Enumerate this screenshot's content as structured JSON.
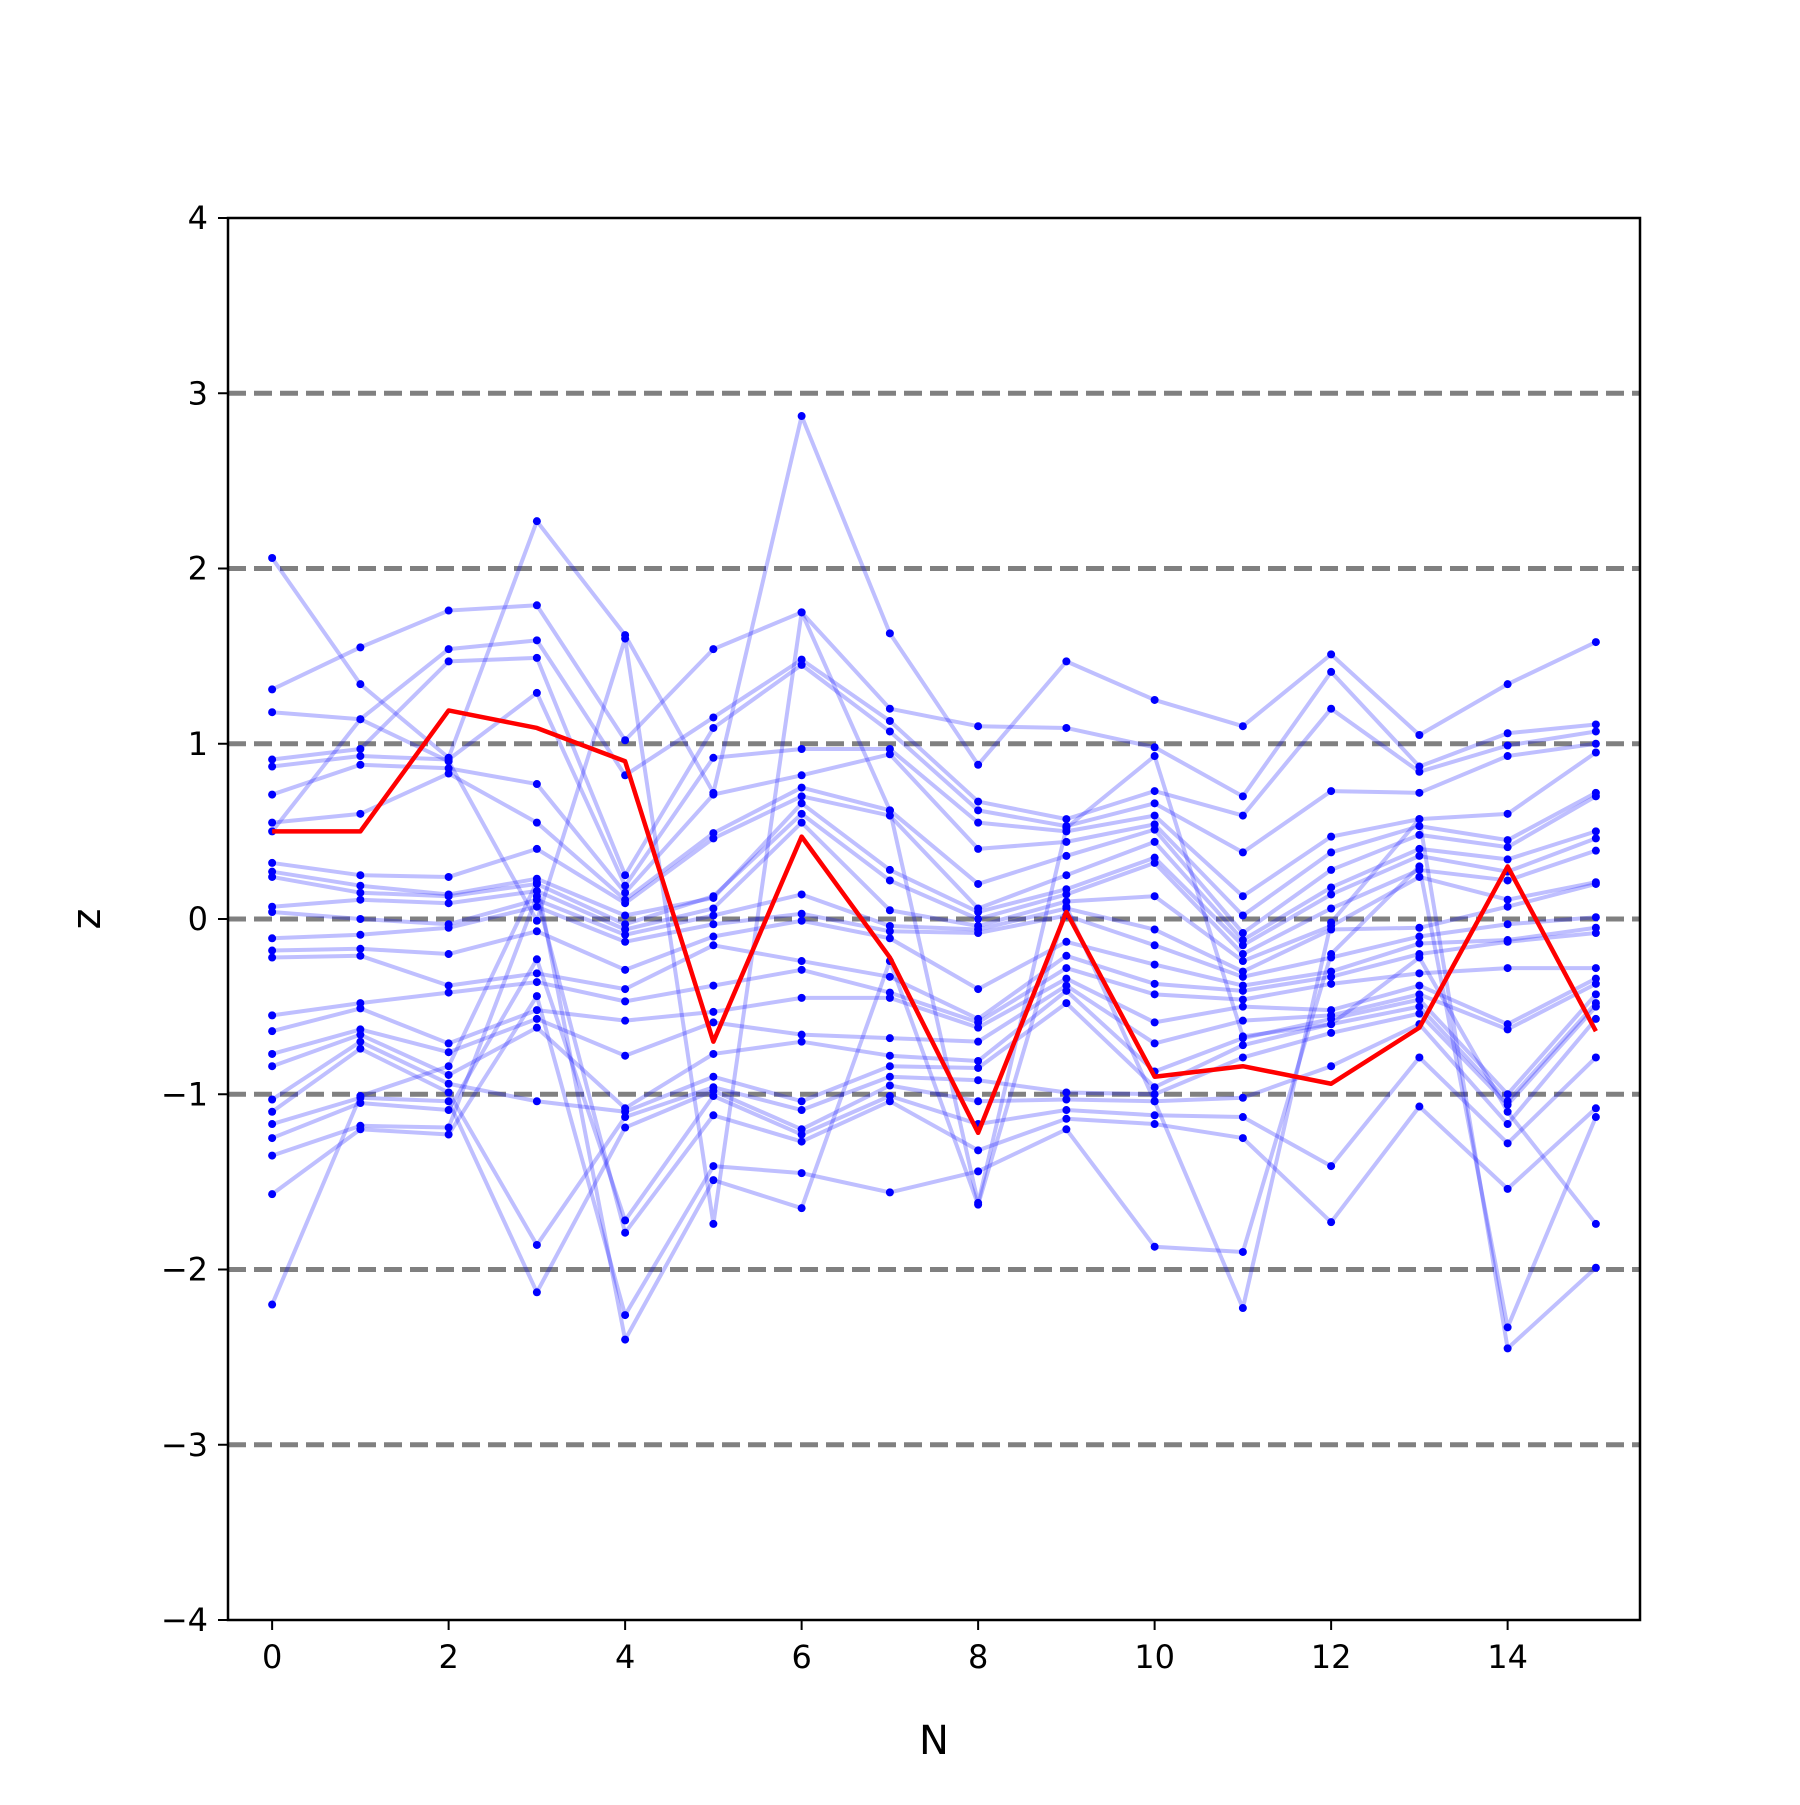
{
  "chart_data": {
    "type": "line",
    "xlabel": "N",
    "ylabel": "z",
    "xlim": [
      -0.5,
      15.5
    ],
    "ylim": [
      -4,
      4
    ],
    "x_ticks": [
      0,
      2,
      4,
      6,
      8,
      10,
      12,
      14
    ],
    "y_ticks": [
      -4,
      -3,
      -2,
      -1,
      0,
      1,
      2,
      3,
      4
    ],
    "y_tick_labels": [
      "−4",
      "−3",
      "−2",
      "−1",
      "0",
      "1",
      "2",
      "3",
      "4"
    ],
    "reference_lines_y": [
      -3,
      -2,
      -1,
      0,
      1,
      2,
      3
    ],
    "reference_line_color": "#808080",
    "sample_color": "#0000ff",
    "highlight_color": "#ff0000",
    "x": [
      0,
      1,
      2,
      3,
      4,
      5,
      6,
      7,
      8,
      9,
      10,
      11,
      12,
      13,
      14,
      15
    ],
    "highlight_series": {
      "values": [
        0.5,
        0.5,
        1.19,
        1.09,
        0.9,
        -0.7,
        0.47,
        -0.22,
        -1.22,
        0.04,
        -0.9,
        -0.84,
        -0.94,
        -0.62,
        0.3,
        -0.64
      ]
    },
    "sample_series": [
      {
        "values": [
          2.06,
          1.34,
          0.92,
          2.27,
          1.62,
          0.72,
          2.87,
          1.63,
          0.88,
          1.47,
          1.25,
          1.1,
          1.51,
          1.05,
          1.34,
          1.58
        ]
      },
      {
        "values": [
          1.31,
          1.55,
          1.76,
          1.79,
          1.02,
          1.54,
          1.75,
          1.2,
          1.1,
          1.09,
          0.98,
          0.7,
          1.41,
          0.87,
          1.06,
          1.11
        ]
      },
      {
        "values": [
          1.18,
          1.14,
          1.54,
          1.59,
          0.82,
          1.15,
          1.48,
          1.13,
          0.67,
          0.57,
          0.73,
          0.59,
          1.2,
          0.84,
          0.99,
          1.07
        ]
      },
      {
        "values": [
          0.91,
          0.97,
          1.47,
          1.49,
          0.25,
          1.09,
          1.45,
          1.07,
          0.62,
          0.53,
          0.66,
          0.38,
          0.73,
          0.72,
          0.93,
          1.0
        ]
      },
      {
        "values": [
          0.87,
          0.93,
          0.91,
          1.29,
          0.19,
          0.92,
          0.97,
          0.97,
          0.55,
          0.5,
          0.59,
          0.13,
          0.47,
          0.57,
          0.6,
          0.95
        ]
      },
      {
        "values": [
          0.71,
          0.88,
          0.86,
          0.77,
          0.15,
          0.71,
          0.82,
          0.94,
          0.4,
          0.44,
          0.54,
          0.02,
          0.38,
          0.53,
          0.45,
          0.72
        ]
      },
      {
        "values": [
          0.55,
          0.6,
          0.83,
          0.55,
          0.11,
          0.49,
          0.75,
          0.62,
          0.2,
          0.36,
          0.51,
          -0.08,
          0.28,
          0.48,
          0.41,
          0.7
        ]
      },
      {
        "values": [
          0.32,
          0.25,
          0.24,
          0.4,
          0.09,
          0.46,
          0.7,
          0.59,
          0.06,
          0.25,
          0.44,
          -0.12,
          0.18,
          0.4,
          0.34,
          0.5
        ]
      },
      {
        "values": [
          0.27,
          0.19,
          0.14,
          0.23,
          0.02,
          0.12,
          0.66,
          0.28,
          0.04,
          0.17,
          0.35,
          -0.15,
          0.14,
          0.36,
          0.27,
          0.46
        ]
      },
      {
        "values": [
          0.24,
          0.15,
          0.13,
          0.2,
          -0.03,
          0.13,
          0.6,
          0.22,
          0.0,
          0.14,
          0.32,
          -0.2,
          0.06,
          0.28,
          0.22,
          0.39
        ]
      },
      {
        "values": [
          0.07,
          0.11,
          0.09,
          0.16,
          -0.06,
          0.06,
          0.55,
          0.05,
          -0.04,
          0.1,
          0.13,
          -0.24,
          -0.04,
          0.24,
          0.11,
          0.21
        ]
      },
      {
        "values": [
          0.04,
          0.0,
          -0.03,
          0.11,
          -0.09,
          0.02,
          0.14,
          -0.04,
          -0.06,
          0.06,
          -0.06,
          -0.3,
          -0.06,
          -0.05,
          0.07,
          0.2
        ]
      },
      {
        "values": [
          -0.11,
          -0.09,
          -0.05,
          0.07,
          -0.13,
          -0.03,
          0.03,
          -0.07,
          -0.08,
          0.02,
          -0.15,
          -0.33,
          -0.22,
          -0.1,
          -0.03,
          0.01
        ]
      },
      {
        "values": [
          -0.18,
          -0.17,
          -0.2,
          -0.07,
          -0.29,
          -0.1,
          -0.01,
          -0.11,
          -0.4,
          -0.13,
          -0.26,
          -0.38,
          -0.3,
          -0.14,
          -0.12,
          -0.05
        ]
      },
      {
        "values": [
          -0.22,
          -0.21,
          -0.38,
          -0.31,
          -0.4,
          -0.15,
          -0.24,
          -0.33,
          -0.57,
          -0.21,
          -0.37,
          -0.41,
          -0.33,
          -0.2,
          -0.13,
          -0.08
        ]
      },
      {
        "values": [
          -0.55,
          -0.48,
          -0.42,
          -0.36,
          -0.47,
          -0.38,
          -0.29,
          -0.42,
          -0.59,
          -0.28,
          -0.43,
          -0.46,
          -0.37,
          -0.31,
          -0.28,
          -0.28
        ]
      },
      {
        "values": [
          -0.64,
          -0.51,
          -0.71,
          -0.52,
          -0.58,
          -0.53,
          -0.45,
          -0.45,
          -0.62,
          -0.34,
          -0.59,
          -0.5,
          -0.52,
          -0.38,
          -0.6,
          -0.34
        ]
      },
      {
        "values": [
          -0.77,
          -0.63,
          -0.76,
          -0.57,
          -0.78,
          -0.59,
          -0.66,
          -0.68,
          -0.7,
          -0.38,
          -0.71,
          -0.58,
          -0.55,
          -0.43,
          -0.63,
          -0.37
        ]
      },
      {
        "values": [
          -0.84,
          -0.66,
          -0.89,
          -0.62,
          -1.08,
          -0.77,
          -0.7,
          -0.78,
          -0.81,
          -0.41,
          -0.87,
          -0.68,
          -0.57,
          -0.46,
          -1.0,
          -0.43
        ]
      },
      {
        "values": [
          -1.03,
          -0.7,
          -0.94,
          -1.04,
          -1.1,
          -0.9,
          -1.04,
          -0.84,
          -0.85,
          -0.48,
          -0.96,
          -0.72,
          -0.6,
          -0.5,
          -1.04,
          -0.48
        ]
      },
      {
        "values": [
          -1.1,
          -0.74,
          -0.99,
          -1.86,
          -1.13,
          -0.96,
          -1.09,
          -0.9,
          -0.92,
          -0.99,
          -1.0,
          -0.79,
          -0.65,
          -0.54,
          -1.06,
          -0.5
        ]
      },
      {
        "values": [
          -1.17,
          -1.02,
          -1.04,
          -2.13,
          -1.19,
          -0.98,
          -1.2,
          -0.95,
          -1.04,
          -1.03,
          -1.04,
          -1.02,
          -0.84,
          -0.6,
          -1.17,
          -0.57
        ]
      },
      {
        "values": [
          -1.25,
          -1.05,
          -1.09,
          -0.23,
          -1.72,
          -1.01,
          -1.23,
          -1.01,
          -1.17,
          -1.09,
          -1.12,
          -1.13,
          -1.41,
          -0.79,
          -1.28,
          -0.79
        ]
      },
      {
        "values": [
          -1.35,
          -1.18,
          -1.19,
          0.13,
          -1.79,
          -1.12,
          -1.27,
          -1.04,
          -1.32,
          -1.14,
          -1.17,
          -1.25,
          -1.73,
          -1.07,
          -1.54,
          -1.08
        ]
      },
      {
        "values": [
          -1.57,
          -1.2,
          -1.23,
          -0.44,
          -2.26,
          -1.41,
          -1.45,
          -1.56,
          -1.44,
          -1.2,
          -1.87,
          -1.9,
          -0.2,
          0.3,
          -2.33,
          -1.13
        ]
      },
      {
        "values": [
          -2.2,
          -1.01,
          -0.84,
          0.21,
          -2.4,
          -1.49,
          -1.65,
          -0.24,
          -1.63,
          0.07,
          -1.04,
          -2.22,
          -0.02,
          0.57,
          -2.45,
          -1.99
        ]
      },
      {
        "values": [
          0.5,
          1.14,
          0.9,
          -0.01,
          1.6,
          -1.74,
          1.75,
          0.62,
          -1.62,
          0.52,
          0.93,
          -0.67,
          -0.6,
          -0.22,
          -1.1,
          -1.74
        ]
      }
    ]
  }
}
